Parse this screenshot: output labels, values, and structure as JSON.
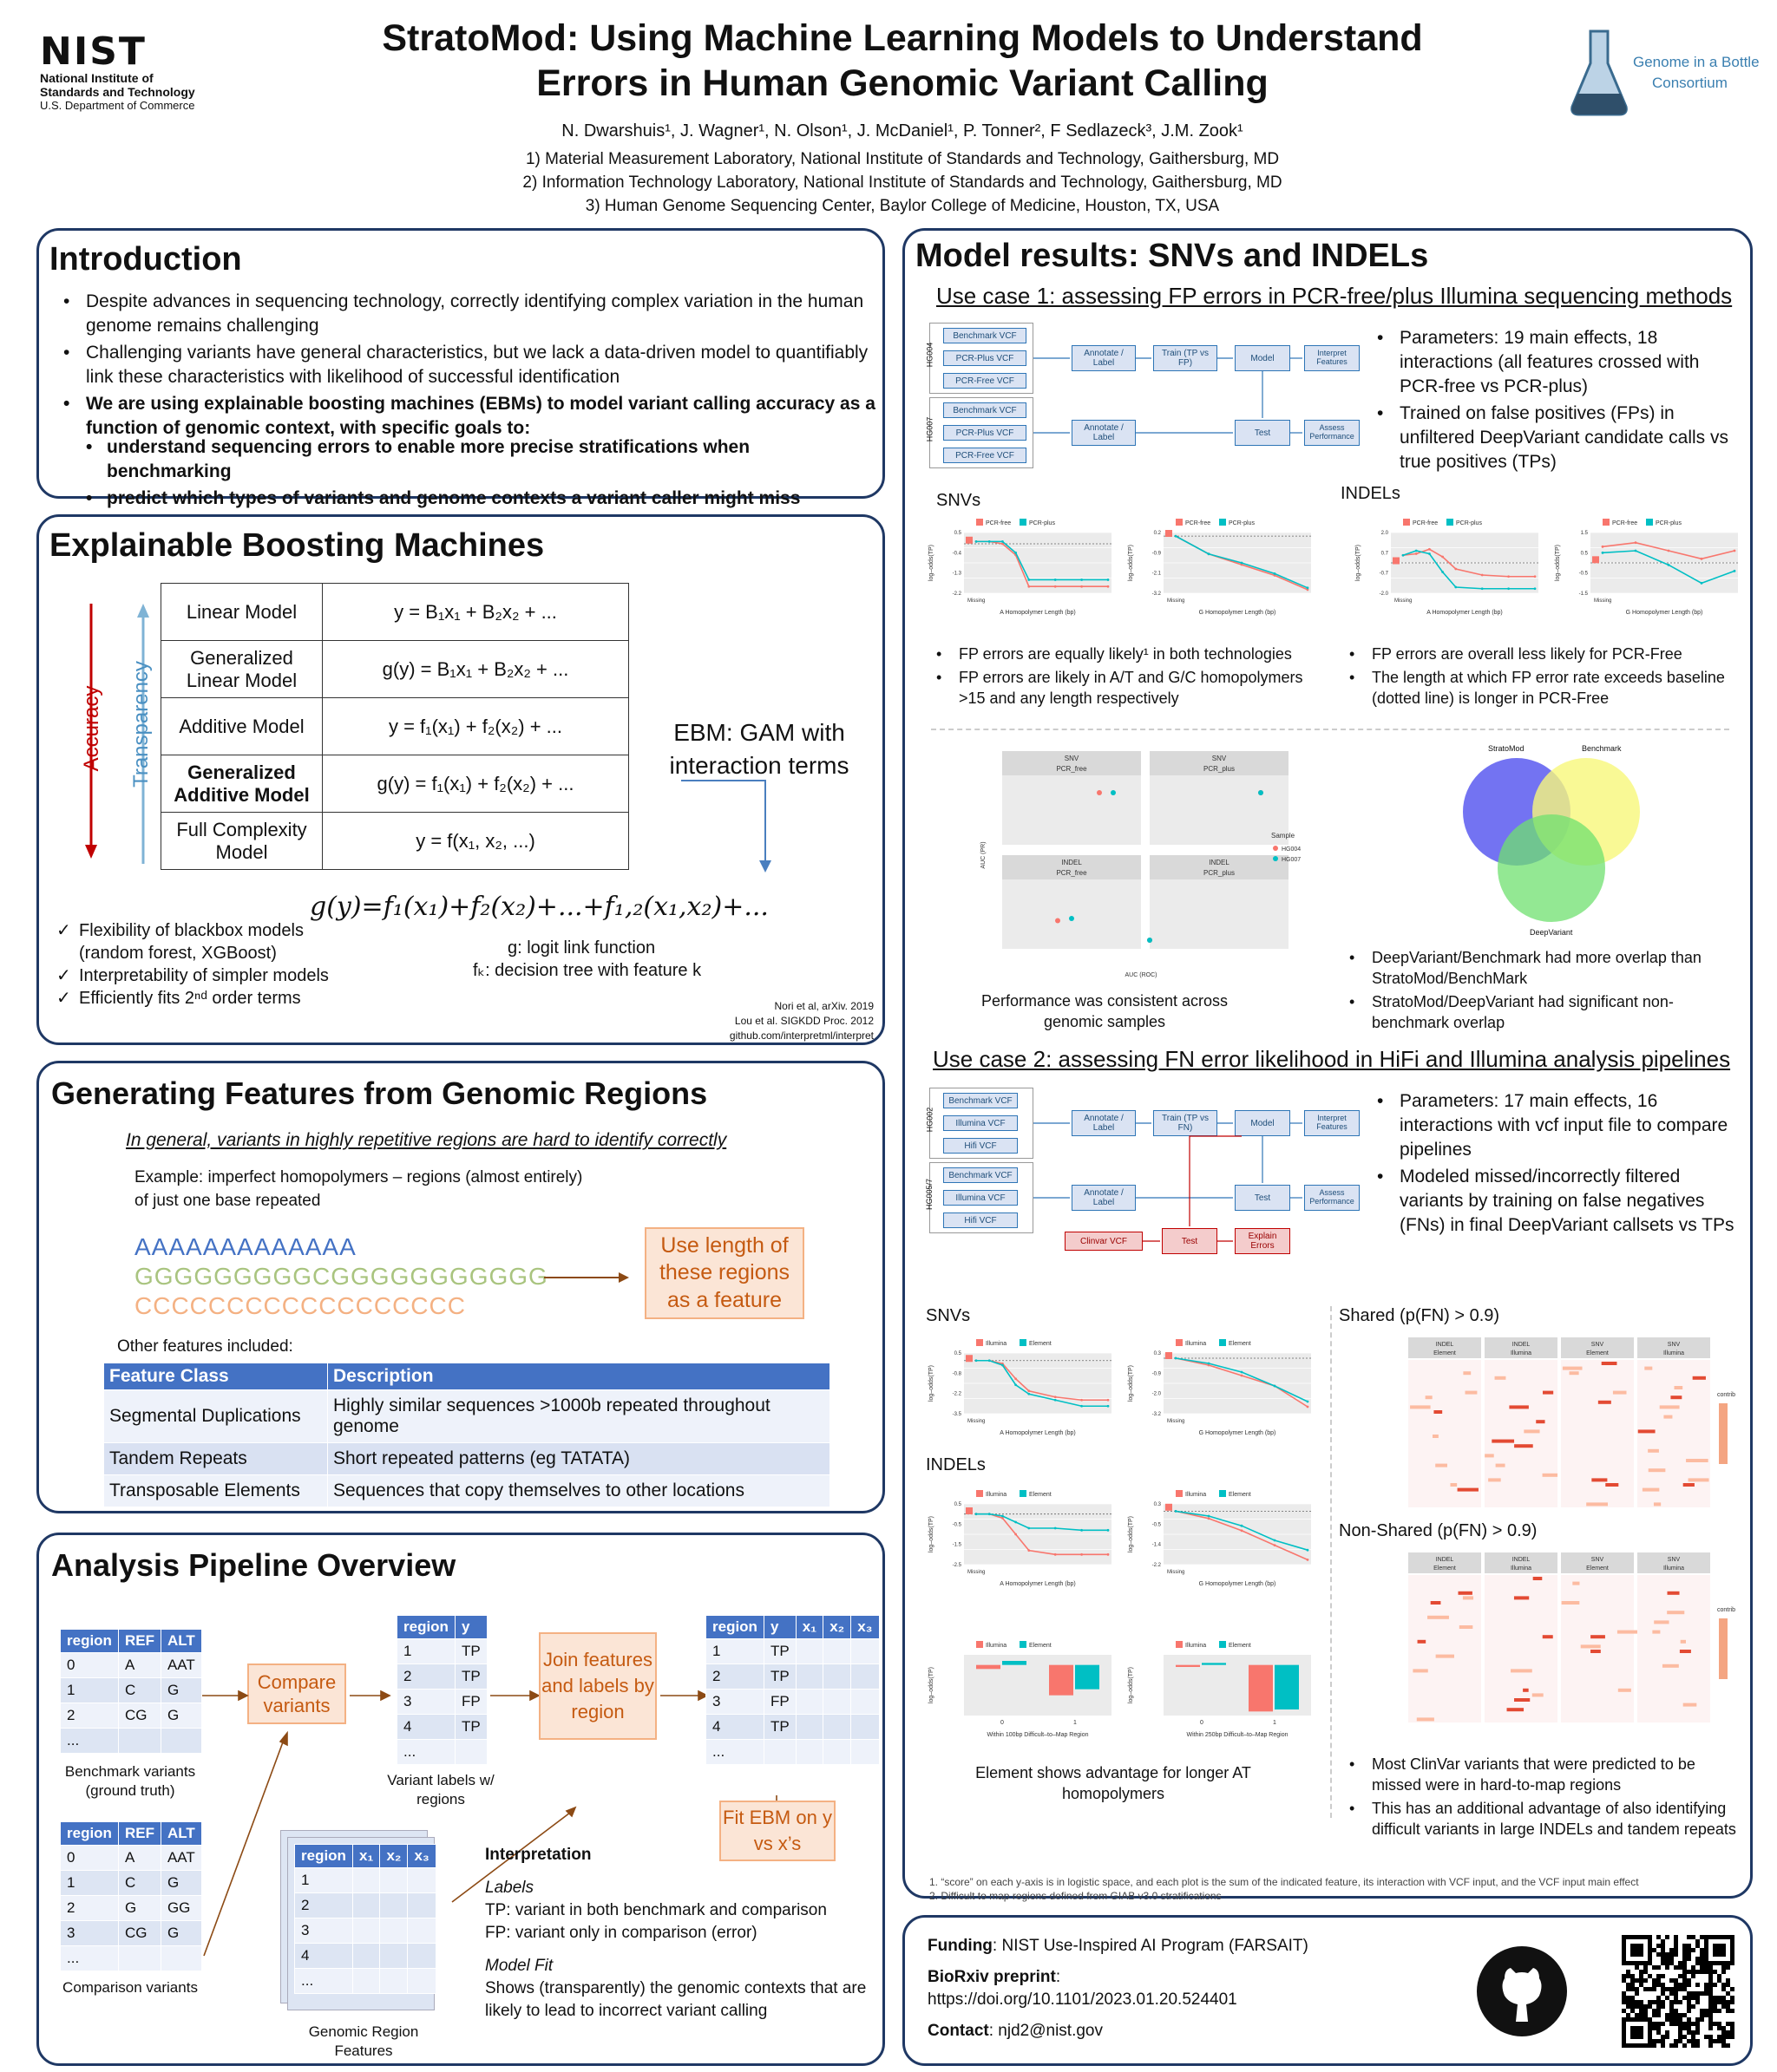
{
  "header": {
    "nist_logo": "NIST",
    "nist_line1": "National Institute of",
    "nist_line2": "Standards and Technology",
    "nist_line3": "U.S. Department of Commerce",
    "title_line1": "StratoMod: Using Machine Learning Models to Understand",
    "title_line2": "Errors in Human Genomic Variant Calling",
    "authors": "N. Dwarshuis¹, J. Wagner¹, N. Olson¹, J. McDaniel¹, P. Tonner², F Sedlazeck³, J.M. Zook¹",
    "affil1": "1)  Material Measurement Laboratory, National Institute of Standards and Technology, Gaithersburg, MD",
    "affil2": "2)  Information Technology Laboratory, National Institute of Standards and Technology, Gaithersburg, MD",
    "affil3": "3)  Human Genome Sequencing Center, Baylor College of Medicine, Houston, TX, USA",
    "giab_line1": "Genome in a Bottle",
    "giab_line2": "Consortium"
  },
  "intro": {
    "title": "Introduction",
    "b1": "Despite advances in sequencing technology, correctly identifying complex variation in the human genome remains challenging",
    "b2": "Challenging variants have general characteristics, but we lack a data-driven model to quantifiably link these characteristics with likelihood of successful identification",
    "b3": "We are using explainable boosting machines (EBMs) to model variant calling accuracy as a function of genomic context, with specific goals to:",
    "s1": "understand sequencing errors to enable more precise stratifications when benchmarking",
    "s2": "predict which types of variants and genome contexts a variant caller might miss"
  },
  "ebm": {
    "title": "Explainable Boosting Machines",
    "accuracy": "Accuracy",
    "transparency": "Transparency",
    "rows": [
      {
        "name": "Linear Model",
        "eq": "y = B₁x₁ + B₂x₂ + ..."
      },
      {
        "name": "Generalized Linear Model",
        "eq": "g(y) = B₁x₁ + B₂x₂ + ..."
      },
      {
        "name": "Additive Model",
        "eq": "y = f₁(x₁) + f₂(x₂) + ..."
      },
      {
        "name": "Generalized Additive Model",
        "eq": "g(y) = f₁(x₁) + f₂(x₂) + ..."
      },
      {
        "name": "Full Complexity Model",
        "eq": "y = f(x₁, x₂, ...)"
      }
    ],
    "gam_note": "EBM: GAM with interaction terms",
    "formula": "g(y)=f₁(x₁)+f₂(x₂)+...+f₁,₂(x₁,x₂)+...",
    "g_note": "g: logit link function",
    "fk_note": "fₖ: decision tree with feature k",
    "c1": "Flexibility of blackbox models (random forest, XGBoost)",
    "c2": "Interpretability of simpler models",
    "c3": "Efficiently fits 2ⁿᵈ order terms",
    "ref1": "Nori et al, arXiv. 2019",
    "ref2": "Lou et al. SIGKDD Proc. 2012",
    "ref3": "github.com/interpretml/interpret"
  },
  "features": {
    "title": "Generating Features from Genomic Regions",
    "subtitle": "In general, variants in highly repetitive regions are hard to identify correctly",
    "example": "Example: imperfect homopolymers – regions (almost entirely) of just one base repeated",
    "seq_a": "AAAAAAAAAAAAA",
    "seq_g1": "GGGGGGGGGC",
    "seq_g2": "GGGGGGGGGGG",
    "seq_c": "CCCCCCCCCCCCCCCCCC",
    "use_box": "Use length of these regions as a feature",
    "other": "Other features included:",
    "th1": "Feature Class",
    "th2": "Description",
    "rows": [
      [
        "Segmental Duplications",
        "Highly similar sequences >1000b repeated throughout genome"
      ],
      [
        "Tandem Repeats",
        "Short repeated patterns (eg TATATA)"
      ],
      [
        "Transposable Elements",
        "Sequences that copy themselves to other locations"
      ]
    ]
  },
  "pipeline": {
    "title": "Analysis Pipeline Overview",
    "bench_head": [
      "region",
      "REF",
      "ALT"
    ],
    "bench_rows": [
      [
        "0",
        "A",
        "AAT"
      ],
      [
        "1",
        "C",
        "G"
      ],
      [
        "2",
        "CG",
        "G"
      ],
      [
        "...",
        "",
        ""
      ]
    ],
    "bench_label": "Benchmark variants (ground truth)",
    "comp_head": [
      "region",
      "REF",
      "ALT"
    ],
    "comp_rows": [
      [
        "0",
        "A",
        "AAT"
      ],
      [
        "1",
        "C",
        "G"
      ],
      [
        "2",
        "G",
        "GG"
      ],
      [
        "3",
        "CG",
        "G"
      ],
      [
        "...",
        "",
        ""
      ]
    ],
    "comp_label": "Comparison variants",
    "compare_box": "Compare variants",
    "lab_head": [
      "region",
      "y"
    ],
    "lab_rows": [
      [
        "1",
        "TP"
      ],
      [
        "2",
        "TP"
      ],
      [
        "3",
        "FP"
      ],
      [
        "4",
        "TP"
      ],
      [
        "...",
        ""
      ]
    ],
    "lab_label": "Variant labels w/ regions",
    "join_box": "Join features and labels by region",
    "joined_head": [
      "region",
      "y",
      "x₁",
      "x₂",
      "x₃"
    ],
    "joined_rows": [
      [
        "1",
        "TP",
        "",
        "",
        ""
      ],
      [
        "2",
        "TP",
        "",
        "",
        ""
      ],
      [
        "3",
        "FP",
        "",
        "",
        ""
      ],
      [
        "4",
        "TP",
        "",
        "",
        ""
      ],
      [
        "...",
        "",
        "",
        "",
        ""
      ]
    ],
    "fit_box": "Fit EBM on y vs x’s",
    "geno_head": [
      "region",
      "x₁",
      "x₂",
      "x₃"
    ],
    "geno_rows": [
      [
        "1",
        "",
        "",
        ""
      ],
      [
        "2",
        "",
        "",
        ""
      ],
      [
        "3",
        "",
        "",
        ""
      ],
      [
        "4",
        "",
        "",
        ""
      ],
      [
        "...",
        "",
        "",
        ""
      ]
    ],
    "geno_label": "Genomic Region Features",
    "interp_title": "Interpretation",
    "labels_title": "Labels",
    "tp": "TP: variant in both benchmark and comparison",
    "fp": "FP: variant only in comparison (error)",
    "fit_title": "Model Fit",
    "fit_text": "Shows (transparently) the genomic contexts that are likely to lead to incorrect variant calling"
  },
  "results": {
    "title": "Model results: SNVs and INDELs",
    "uc1": "Use case 1: assessing FP errors in PCR-free/plus Illumina sequencing methods",
    "uc1_hg1": "HG004",
    "uc1_hg2": "HG007",
    "flow_bench": "Benchmark VCF",
    "flow_plus": "PCR-Plus VCF",
    "flow_free": "PCR-Free VCF",
    "flow_annot": "Annotate / Label",
    "flow_train1": "Train (TP vs FP)",
    "flow_model": "Model",
    "flow_interp": "Interpret Features",
    "flow_test": "Test",
    "flow_assess": "Assess Performance",
    "uc1_p1": "Parameters: 19 main effects, 18 interactions (all features crossed with PCR-free vs PCR-plus)",
    "uc1_p2": "Trained on false positives (FPs) in unfiltered DeepVariant candidate calls vs true positives (TPs)",
    "snvs": "SNVs",
    "indels": "INDELs",
    "legend_free": "PCR-free",
    "legend_plus": "PCR-plus",
    "ylab": "log–odds(TP)",
    "xlab_a": "A Homopolymer Length (bp)",
    "xlab_g": "G Homopolymer Length (bp)",
    "missing": "Missing",
    "snv_b1": "FP errors are equally likely¹ in both technologies",
    "snv_b2": "FP errors are likely in A/T and G/C homopolymers >15 and any length respectively",
    "indel_b1": "FP errors are overall less likely for PCR-Free",
    "indel_b2": "The length at which FP error rate exceeds baseline (dotted line) is longer in PCR-Free",
    "auc_snv": "SNV",
    "auc_indel": "INDEL",
    "auc_free": "PCR_free",
    "auc_plus": "PCR_plus",
    "auc_ylab": "AUC (PR)",
    "auc_xlab": "AUC (ROC)",
    "auc_sample": "Sample",
    "auc_hg004": "HG004",
    "auc_hg007": "HG007",
    "auc_caption": "Performance was consistent across genomic samples",
    "venn_strato": "StratoMod",
    "venn_bench": "Benchmark",
    "venn_dv": "DeepVariant",
    "venn_b1": "DeepVariant/Benchmark had more overlap than StratoMod/BenchMark",
    "venn_b2": "StratoMod/DeepVariant had significant non-benchmark overlap",
    "uc2": "Use case 2: assessing FN error likelihood in HiFi and Illumina analysis pipelines",
    "uc2_hg1": "HG002",
    "uc2_hg2": "HG005/7",
    "flow_illumina": "Illumina VCF",
    "flow_hifi": "Hifi VCF",
    "flow_train2": "Train (TP vs FN)",
    "flow_clinvar": "Clinvar VCF",
    "flow_explain": "Explain Errors",
    "uc2_p1": "Parameters: 17 main effects, 16 interactions with vcf input file to compare pipelines",
    "uc2_p2": "Modeled missed/incorrectly filtered variants by training on false negatives (FNs) in final DeepVariant callsets vs TPs",
    "legend_illumina": "Illumina",
    "legend_element": "Element",
    "shared": "Shared (p(FN) > 0.9)",
    "nonshared": "Non-Shared (p(FN) > 0.9)",
    "contrib": "contrib",
    "xlab_100": "Within 100bp Difficult–to–Map Region",
    "xlab_250": "Within 250bp Difficult–to–Map Region",
    "elem_caption": "Element shows advantage for longer AT homopolymers",
    "clin_b1": "Most ClinVar variants that were predicted to be missed were in hard-to-map regions",
    "clin_b2": "This has an additional advantage of also identifying difficult variants in large INDELs and tandem repeats",
    "fn1": "1.   “score” on each y-axis is in logistic space, and each plot is the sum of the indicated feature, its interaction with VCF input, and the VCF input main effect",
    "fn2": "2.   Difficult to map regions defined from GIAB v3.0 stratifications"
  },
  "footer": {
    "funding_label": "Funding",
    "funding": ": NIST Use-Inspired AI Program (FARSAIT)",
    "biorxiv_label": "BioRxiv preprint",
    "biorxiv_colon": ":",
    "doi": "https://doi.org/10.1101/2023.01.20.524401",
    "contact_label": "Contact",
    "contact": ": njd2@nist.gov"
  },
  "chart_data": [
    {
      "type": "line",
      "title": "",
      "xlabel": "A Homopolymer Length (bp)",
      "ylabel": "log–odds(TP)",
      "series": [
        {
          "name": "PCR-free",
          "x": [
            0,
            5,
            10,
            15,
            20,
            30,
            40,
            50
          ],
          "values": [
            0.1,
            0.1,
            0.0,
            -0.5,
            -1.9,
            -1.9,
            -1.9,
            -1.9
          ]
        },
        {
          "name": "PCR-plus",
          "x": [
            0,
            5,
            10,
            15,
            20,
            30,
            40,
            50
          ],
          "values": [
            0.1,
            0.1,
            0.1,
            -0.4,
            -1.6,
            -1.6,
            -1.6,
            -1.6
          ]
        }
      ],
      "ylim": [
        -2.2,
        0.5
      ]
    },
    {
      "type": "line",
      "title": "",
      "xlabel": "G Homopolymer Length (bp)",
      "ylabel": "log–odds(TP)",
      "series": [
        {
          "name": "PCR-free",
          "x": [
            3,
            6,
            9,
            12,
            15
          ],
          "values": [
            0.0,
            -1.0,
            -1.6,
            -2.2,
            -3.0
          ]
        },
        {
          "name": "PCR-plus",
          "x": [
            3,
            6,
            9,
            12,
            15
          ],
          "values": [
            0.0,
            -1.0,
            -1.5,
            -2.1,
            -2.9
          ]
        }
      ],
      "ylim": [
        -3.2,
        0.2
      ]
    }
  ]
}
